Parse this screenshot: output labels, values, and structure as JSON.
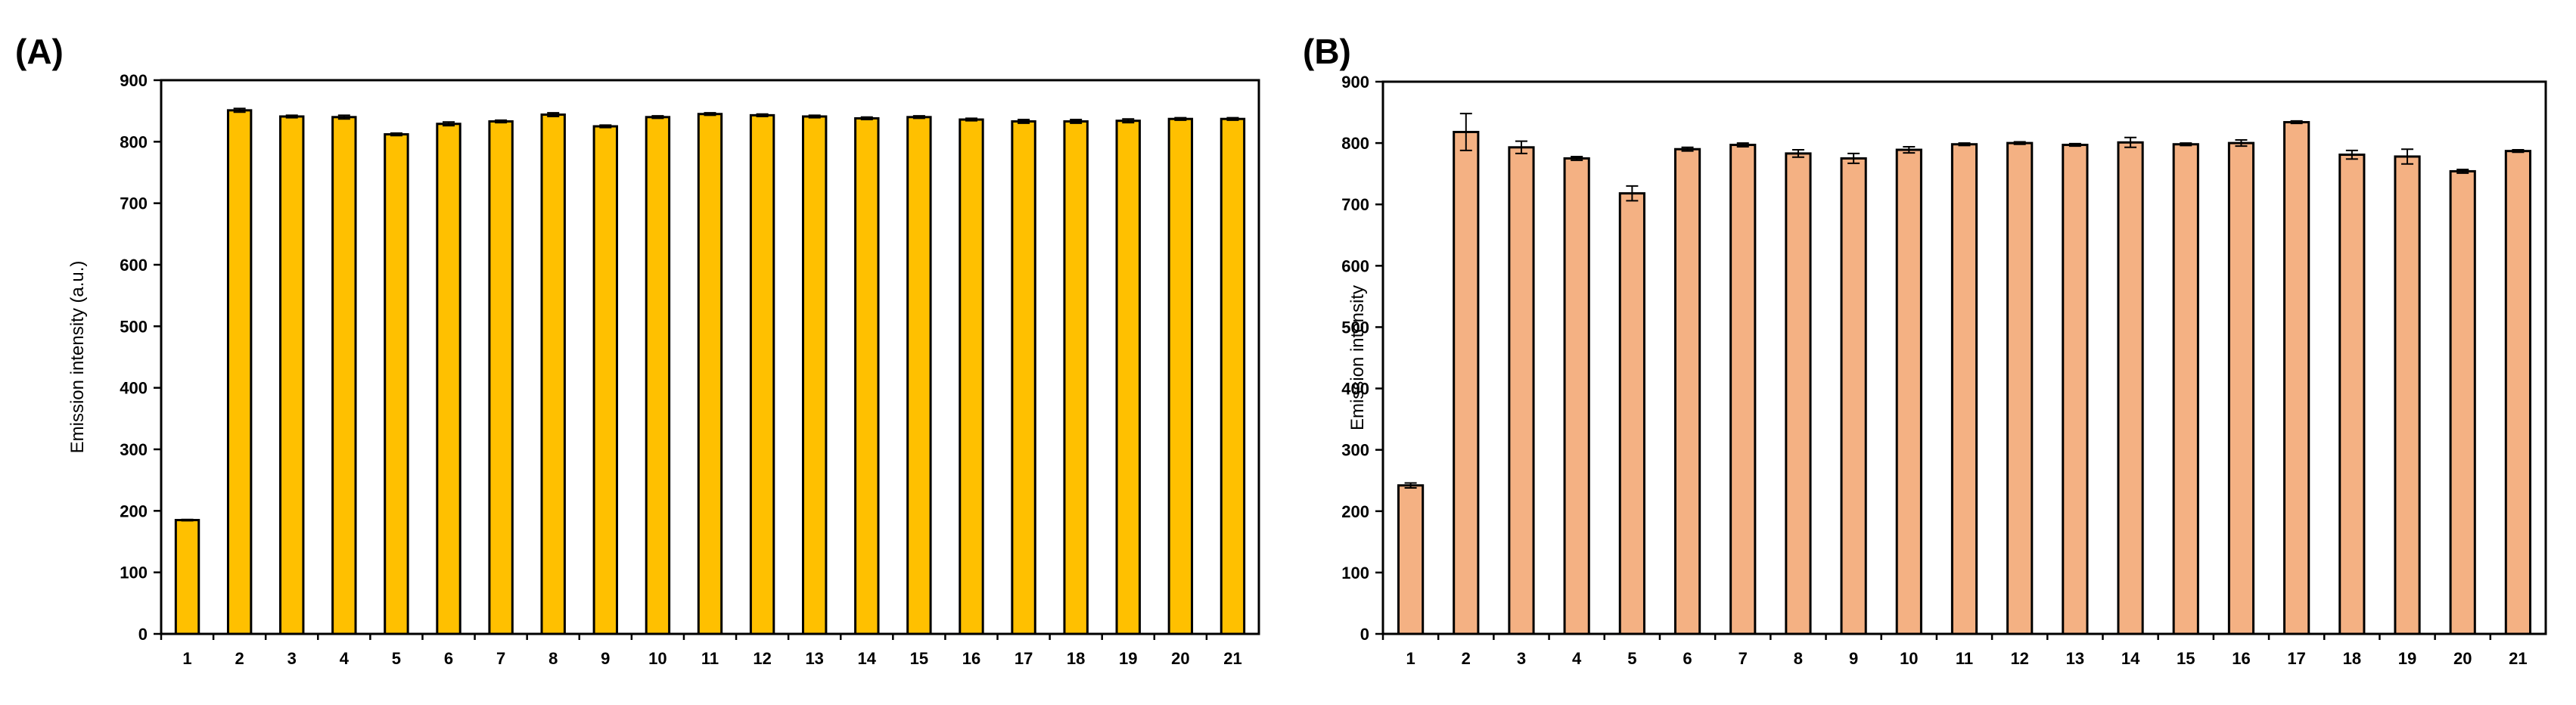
{
  "chart_data": [
    {
      "type": "bar",
      "panel_label": "(A)",
      "title": "",
      "xlabel": "",
      "ylabel": "Emission intensity (a.u.)",
      "ylim": [
        0,
        900
      ],
      "yticks": [
        0,
        100,
        200,
        300,
        400,
        500,
        600,
        700,
        800,
        900
      ],
      "categories": [
        "1",
        "2",
        "3",
        "4",
        "5",
        "6",
        "7",
        "8",
        "9",
        "10",
        "11",
        "12",
        "13",
        "14",
        "15",
        "16",
        "17",
        "18",
        "19",
        "20",
        "21"
      ],
      "values": [
        185,
        851,
        841,
        840,
        812,
        829,
        833,
        844,
        825,
        840,
        845,
        843,
        841,
        838,
        840,
        836,
        833,
        833,
        834,
        837,
        837
      ],
      "errors": [
        1,
        3,
        2,
        3,
        2,
        3,
        2,
        3,
        2,
        2,
        2,
        2,
        2,
        2,
        2,
        2,
        3,
        3,
        3,
        2,
        2
      ],
      "bar_color": "#FFC000",
      "grid": false,
      "legend": "none"
    },
    {
      "type": "bar",
      "panel_label": "(B)",
      "title": "",
      "xlabel": "",
      "ylabel": "Emission intensity",
      "ylim": [
        0,
        900
      ],
      "yticks": [
        0,
        100,
        200,
        300,
        400,
        500,
        600,
        700,
        800,
        900
      ],
      "categories": [
        "1",
        "2",
        "3",
        "4",
        "5",
        "6",
        "7",
        "8",
        "9",
        "10",
        "11",
        "12",
        "13",
        "14",
        "15",
        "16",
        "17",
        "18",
        "19",
        "20",
        "21"
      ],
      "values": [
        242,
        818,
        793,
        775,
        718,
        790,
        797,
        783,
        775,
        789,
        798,
        800,
        797,
        801,
        798,
        800,
        834,
        781,
        778,
        754,
        787
      ],
      "errors": [
        4,
        30,
        10,
        3,
        12,
        3,
        3,
        6,
        8,
        5,
        2,
        2,
        2,
        8,
        2,
        5,
        2,
        7,
        12,
        3,
        2
      ],
      "bar_color": "#F4B183",
      "grid": false,
      "legend": "none"
    }
  ]
}
